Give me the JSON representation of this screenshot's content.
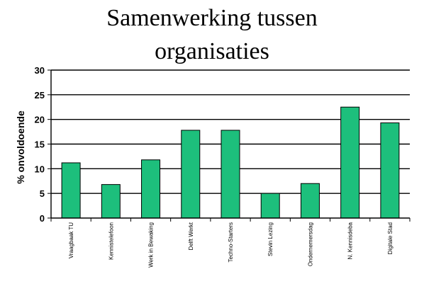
{
  "chart_data": {
    "type": "bar",
    "title_lines": [
      "Samenwerking tussen",
      "organisaties"
    ],
    "xlabel": "",
    "ylabel": "% onvoldoende",
    "ylim": [
      0,
      30
    ],
    "yticks": [
      0,
      5,
      10,
      15,
      20,
      25,
      30
    ],
    "grid": true,
    "categories": [
      "Vraagbaak TU",
      "Kennistelefoon",
      "Werk in Bewaking",
      "Delft Werkt",
      "Techno-Starters",
      "Stevin Lezing",
      "Ondernemersdag",
      "N. Kennisdeba",
      "Digitale Stad"
    ],
    "values": [
      11.2,
      6.8,
      11.8,
      17.8,
      17.8,
      5.0,
      7.0,
      22.5,
      19.3
    ],
    "colors": {
      "bar": "#1dbf7c",
      "bar_stroke": "#000000",
      "grid": "#000000"
    }
  }
}
